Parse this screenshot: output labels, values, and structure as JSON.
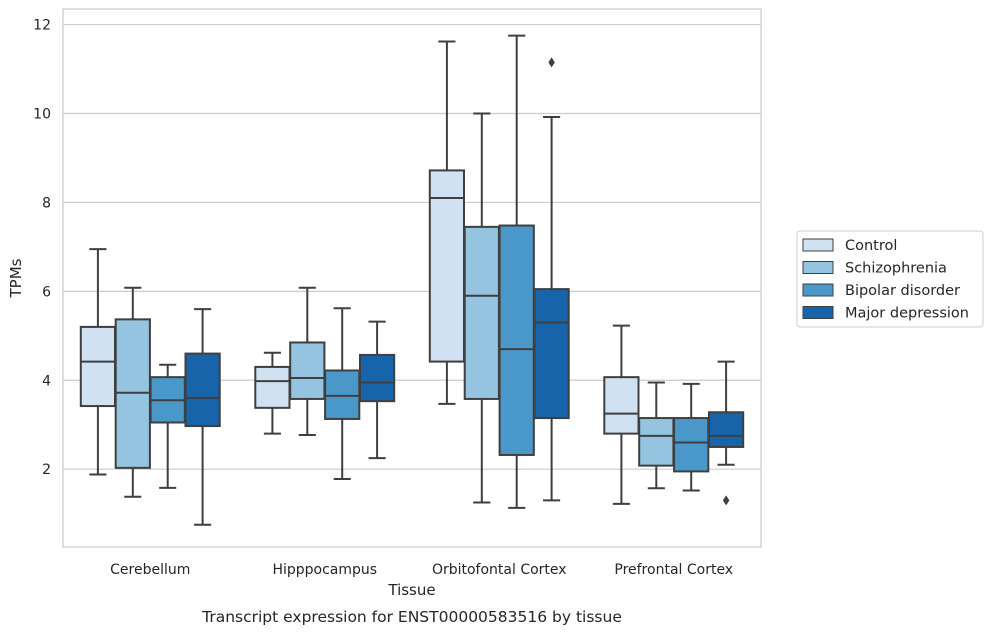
{
  "chart_data": {
    "type": "box",
    "title": "",
    "caption": "Transcript expression for ENST00000583516 by tissue",
    "xlabel": "Tissue",
    "ylabel": "TPMs",
    "ylim": [
      0.25,
      12.35
    ],
    "yticks": [
      2,
      4,
      6,
      8,
      10,
      12
    ],
    "grid": "horizontal",
    "legend_position": "right",
    "categories": [
      "Cerebellum",
      "Hipppocampus",
      "Orbitofontal Cortex",
      "Prefrontal Cortex"
    ],
    "series": [
      {
        "name": "Control",
        "color": "#d0e1f2",
        "boxes": [
          {
            "whislo": 1.88,
            "q1": 3.42,
            "med": 4.42,
            "q3": 5.2,
            "whishi": 6.95,
            "fliers": []
          },
          {
            "whislo": 2.8,
            "q1": 3.38,
            "med": 3.98,
            "q3": 4.3,
            "whishi": 4.62,
            "fliers": []
          },
          {
            "whislo": 3.47,
            "q1": 4.42,
            "med": 8.1,
            "q3": 8.72,
            "whishi": 11.62,
            "fliers": []
          },
          {
            "whislo": 1.22,
            "q1": 2.8,
            "med": 3.25,
            "q3": 4.07,
            "whishi": 5.23,
            "fliers": []
          }
        ]
      },
      {
        "name": "Schizophrenia",
        "color": "#94c4df",
        "boxes": [
          {
            "whislo": 1.38,
            "q1": 2.03,
            "med": 3.72,
            "q3": 5.37,
            "whishi": 6.08,
            "fliers": []
          },
          {
            "whislo": 2.77,
            "q1": 3.58,
            "med": 4.05,
            "q3": 4.85,
            "whishi": 6.08,
            "fliers": []
          },
          {
            "whislo": 1.25,
            "q1": 3.58,
            "med": 5.9,
            "q3": 7.45,
            "whishi": 10.0,
            "fliers": []
          },
          {
            "whislo": 1.57,
            "q1": 2.08,
            "med": 2.75,
            "q3": 3.15,
            "whishi": 3.95,
            "fliers": []
          }
        ]
      },
      {
        "name": "Bipolar disorder",
        "color": "#4a98c9",
        "boxes": [
          {
            "whislo": 1.58,
            "q1": 3.05,
            "med": 3.55,
            "q3": 4.07,
            "whishi": 4.35,
            "fliers": []
          },
          {
            "whislo": 1.78,
            "q1": 3.13,
            "med": 3.65,
            "q3": 4.22,
            "whishi": 5.62,
            "fliers": []
          },
          {
            "whislo": 1.13,
            "q1": 2.32,
            "med": 4.7,
            "q3": 7.48,
            "whishi": 11.75,
            "fliers": []
          },
          {
            "whislo": 1.52,
            "q1": 1.95,
            "med": 2.6,
            "q3": 3.15,
            "whishi": 3.92,
            "fliers": []
          }
        ]
      },
      {
        "name": "Major depression",
        "color": "#1764ab",
        "boxes": [
          {
            "whislo": 0.75,
            "q1": 2.97,
            "med": 3.6,
            "q3": 4.6,
            "whishi": 5.6,
            "fliers": []
          },
          {
            "whislo": 2.25,
            "q1": 3.53,
            "med": 3.95,
            "q3": 4.57,
            "whishi": 5.32,
            "fliers": []
          },
          {
            "whislo": 1.3,
            "q1": 3.15,
            "med": 5.3,
            "q3": 6.05,
            "whishi": 9.92,
            "fliers": [
              11.15
            ]
          },
          {
            "whislo": 2.1,
            "q1": 2.5,
            "med": 2.75,
            "q3": 3.28,
            "whishi": 4.42,
            "fliers": [
              1.3
            ]
          }
        ]
      }
    ]
  }
}
